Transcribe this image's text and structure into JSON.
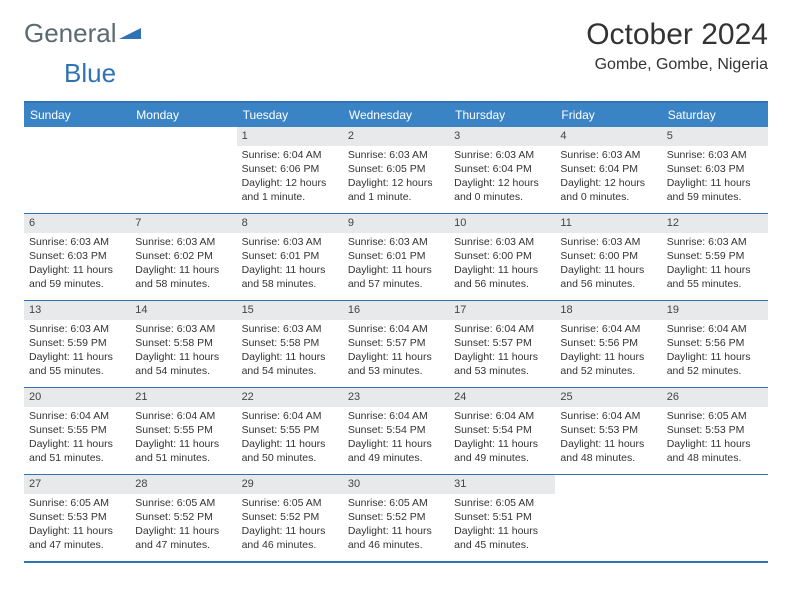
{
  "logo": {
    "part1": "General",
    "part2": "Blue"
  },
  "title": "October 2024",
  "location": "Gombe, Gombe, Nigeria",
  "colors": {
    "header_bg": "#3a84c6",
    "border": "#2f73b6",
    "daynum_bg": "#e7e9ea",
    "text": "#333333",
    "logo_gray": "#5a6a72",
    "logo_blue": "#2f73b6"
  },
  "day_names": [
    "Sunday",
    "Monday",
    "Tuesday",
    "Wednesday",
    "Thursday",
    "Friday",
    "Saturday"
  ],
  "weeks": [
    [
      null,
      null,
      {
        "n": "1",
        "sr": "6:04 AM",
        "ss": "6:06 PM",
        "dl": "12 hours and 1 minute."
      },
      {
        "n": "2",
        "sr": "6:03 AM",
        "ss": "6:05 PM",
        "dl": "12 hours and 1 minute."
      },
      {
        "n": "3",
        "sr": "6:03 AM",
        "ss": "6:04 PM",
        "dl": "12 hours and 0 minutes."
      },
      {
        "n": "4",
        "sr": "6:03 AM",
        "ss": "6:04 PM",
        "dl": "12 hours and 0 minutes."
      },
      {
        "n": "5",
        "sr": "6:03 AM",
        "ss": "6:03 PM",
        "dl": "11 hours and 59 minutes."
      }
    ],
    [
      {
        "n": "6",
        "sr": "6:03 AM",
        "ss": "6:03 PM",
        "dl": "11 hours and 59 minutes."
      },
      {
        "n": "7",
        "sr": "6:03 AM",
        "ss": "6:02 PM",
        "dl": "11 hours and 58 minutes."
      },
      {
        "n": "8",
        "sr": "6:03 AM",
        "ss": "6:01 PM",
        "dl": "11 hours and 58 minutes."
      },
      {
        "n": "9",
        "sr": "6:03 AM",
        "ss": "6:01 PM",
        "dl": "11 hours and 57 minutes."
      },
      {
        "n": "10",
        "sr": "6:03 AM",
        "ss": "6:00 PM",
        "dl": "11 hours and 56 minutes."
      },
      {
        "n": "11",
        "sr": "6:03 AM",
        "ss": "6:00 PM",
        "dl": "11 hours and 56 minutes."
      },
      {
        "n": "12",
        "sr": "6:03 AM",
        "ss": "5:59 PM",
        "dl": "11 hours and 55 minutes."
      }
    ],
    [
      {
        "n": "13",
        "sr": "6:03 AM",
        "ss": "5:59 PM",
        "dl": "11 hours and 55 minutes."
      },
      {
        "n": "14",
        "sr": "6:03 AM",
        "ss": "5:58 PM",
        "dl": "11 hours and 54 minutes."
      },
      {
        "n": "15",
        "sr": "6:03 AM",
        "ss": "5:58 PM",
        "dl": "11 hours and 54 minutes."
      },
      {
        "n": "16",
        "sr": "6:04 AM",
        "ss": "5:57 PM",
        "dl": "11 hours and 53 minutes."
      },
      {
        "n": "17",
        "sr": "6:04 AM",
        "ss": "5:57 PM",
        "dl": "11 hours and 53 minutes."
      },
      {
        "n": "18",
        "sr": "6:04 AM",
        "ss": "5:56 PM",
        "dl": "11 hours and 52 minutes."
      },
      {
        "n": "19",
        "sr": "6:04 AM",
        "ss": "5:56 PM",
        "dl": "11 hours and 52 minutes."
      }
    ],
    [
      {
        "n": "20",
        "sr": "6:04 AM",
        "ss": "5:55 PM",
        "dl": "11 hours and 51 minutes."
      },
      {
        "n": "21",
        "sr": "6:04 AM",
        "ss": "5:55 PM",
        "dl": "11 hours and 51 minutes."
      },
      {
        "n": "22",
        "sr": "6:04 AM",
        "ss": "5:55 PM",
        "dl": "11 hours and 50 minutes."
      },
      {
        "n": "23",
        "sr": "6:04 AM",
        "ss": "5:54 PM",
        "dl": "11 hours and 49 minutes."
      },
      {
        "n": "24",
        "sr": "6:04 AM",
        "ss": "5:54 PM",
        "dl": "11 hours and 49 minutes."
      },
      {
        "n": "25",
        "sr": "6:04 AM",
        "ss": "5:53 PM",
        "dl": "11 hours and 48 minutes."
      },
      {
        "n": "26",
        "sr": "6:05 AM",
        "ss": "5:53 PM",
        "dl": "11 hours and 48 minutes."
      }
    ],
    [
      {
        "n": "27",
        "sr": "6:05 AM",
        "ss": "5:53 PM",
        "dl": "11 hours and 47 minutes."
      },
      {
        "n": "28",
        "sr": "6:05 AM",
        "ss": "5:52 PM",
        "dl": "11 hours and 47 minutes."
      },
      {
        "n": "29",
        "sr": "6:05 AM",
        "ss": "5:52 PM",
        "dl": "11 hours and 46 minutes."
      },
      {
        "n": "30",
        "sr": "6:05 AM",
        "ss": "5:52 PM",
        "dl": "11 hours and 46 minutes."
      },
      {
        "n": "31",
        "sr": "6:05 AM",
        "ss": "5:51 PM",
        "dl": "11 hours and 45 minutes."
      },
      null,
      null
    ]
  ],
  "labels": {
    "sunrise": "Sunrise: ",
    "sunset": "Sunset: ",
    "daylight": "Daylight: "
  }
}
